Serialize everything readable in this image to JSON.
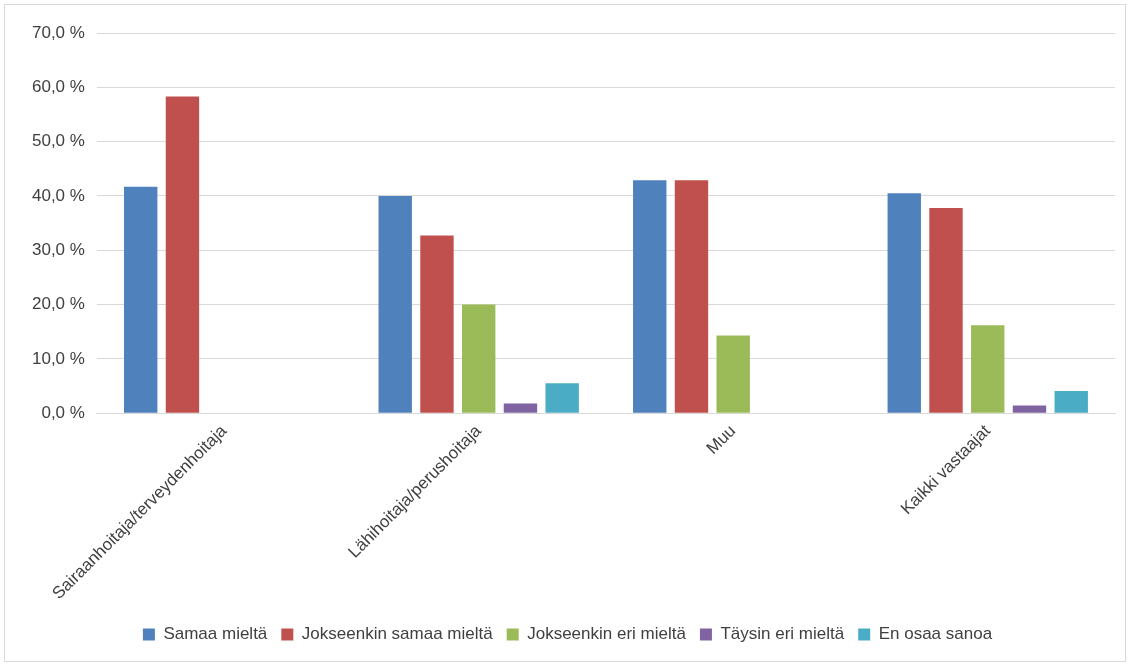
{
  "chart_data": {
    "type": "bar",
    "categories": [
      "Sairaanhoitaja/terveydenhoitaja",
      "Lähihoitaja/perushoitaja",
      "Muu",
      "Kaikki vastaajat"
    ],
    "series": [
      {
        "name": "Samaa mieltä",
        "color": "#4f81bd",
        "values": [
          41.7,
          40.0,
          42.9,
          40.5
        ]
      },
      {
        "name": "Jokseenkin samaa mieltä",
        "color": "#c0504d",
        "values": [
          58.3,
          32.7,
          42.9,
          37.8
        ]
      },
      {
        "name": "Jokseenkin eri mieltä",
        "color": "#9bbb59",
        "values": [
          0,
          20.0,
          14.3,
          16.2
        ]
      },
      {
        "name": "Täysin eri mieltä",
        "color": "#8064a2",
        "values": [
          0,
          1.8,
          0,
          1.4
        ]
      },
      {
        "name": "En osaa sanoa",
        "color": "#4bacc6",
        "values": [
          0,
          5.5,
          0,
          4.1
        ]
      }
    ],
    "ylim": [
      0,
      70
    ],
    "yticks": [
      {
        "value": 0,
        "label": "0,0 %"
      },
      {
        "value": 10,
        "label": "10,0 %"
      },
      {
        "value": 20,
        "label": "20,0 %"
      },
      {
        "value": 30,
        "label": "30,0 %"
      },
      {
        "value": 40,
        "label": "40,0 %"
      },
      {
        "value": 50,
        "label": "50,0 %"
      },
      {
        "value": 60,
        "label": "60,0 %"
      },
      {
        "value": 70,
        "label": "70,0 %"
      }
    ],
    "grid": "y",
    "legend": "bottom"
  }
}
